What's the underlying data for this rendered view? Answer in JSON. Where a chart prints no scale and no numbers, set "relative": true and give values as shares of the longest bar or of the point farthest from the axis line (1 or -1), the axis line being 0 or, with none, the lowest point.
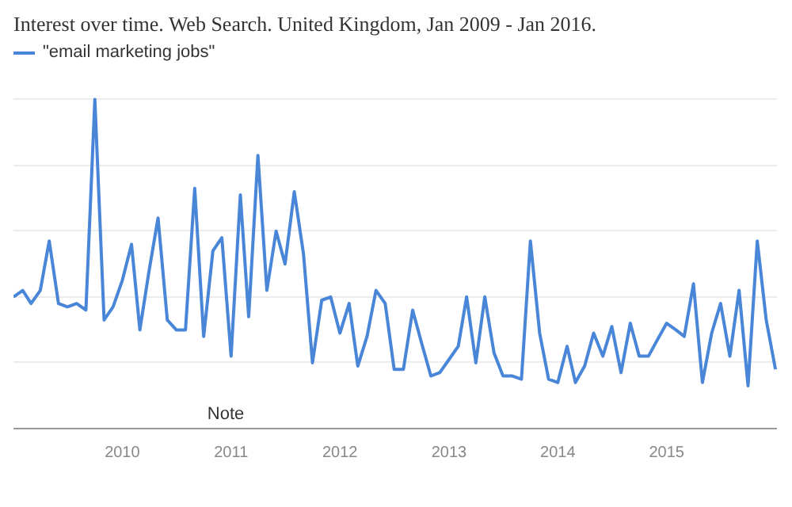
{
  "chart_data": {
    "type": "line",
    "title": "Interest over time. Web Search. United Kingdom, Jan 2009 - Jan 2016.",
    "relative": true,
    "x": [
      "2009-01",
      "2009-02",
      "2009-03",
      "2009-04",
      "2009-05",
      "2009-06",
      "2009-07",
      "2009-08",
      "2009-09",
      "2009-10",
      "2009-11",
      "2009-12",
      "2010-01",
      "2010-02",
      "2010-03",
      "2010-04",
      "2010-05",
      "2010-06",
      "2010-07",
      "2010-08",
      "2010-09",
      "2010-10",
      "2010-11",
      "2010-12",
      "2011-01",
      "2011-02",
      "2011-03",
      "2011-04",
      "2011-05",
      "2011-06",
      "2011-07",
      "2011-08",
      "2011-09",
      "2011-10",
      "2011-11",
      "2011-12",
      "2012-01",
      "2012-02",
      "2012-03",
      "2012-04",
      "2012-05",
      "2012-06",
      "2012-07",
      "2012-08",
      "2012-09",
      "2012-10",
      "2012-11",
      "2012-12",
      "2013-01",
      "2013-02",
      "2013-03",
      "2013-04",
      "2013-05",
      "2013-06",
      "2013-07",
      "2013-08",
      "2013-09",
      "2013-10",
      "2013-11",
      "2013-12",
      "2014-01",
      "2014-02",
      "2014-03",
      "2014-04",
      "2014-05",
      "2014-06",
      "2014-07",
      "2014-08",
      "2014-09",
      "2014-10",
      "2014-11",
      "2014-12",
      "2015-01",
      "2015-02",
      "2015-03",
      "2015-04",
      "2015-05",
      "2015-06",
      "2015-07",
      "2015-08",
      "2015-09",
      "2015-10",
      "2015-11",
      "2015-12",
      "2016-01"
    ],
    "series": [
      {
        "name": "\"email marketing jobs\"",
        "color": "#4a86d8",
        "values": [
          0.4,
          0.42,
          0.38,
          0.42,
          0.57,
          0.38,
          0.37,
          0.38,
          0.36,
          1.0,
          0.33,
          0.37,
          0.45,
          0.56,
          0.3,
          0.48,
          0.64,
          0.33,
          0.3,
          0.3,
          0.73,
          0.28,
          0.54,
          0.58,
          0.22,
          0.71,
          0.34,
          0.83,
          0.42,
          0.6,
          0.5,
          0.72,
          0.53,
          0.2,
          0.39,
          0.4,
          0.29,
          0.38,
          0.19,
          0.28,
          0.42,
          0.38,
          0.18,
          0.18,
          0.36,
          0.26,
          0.16,
          0.17,
          0.21,
          0.25,
          0.4,
          0.2,
          0.4,
          0.23,
          0.16,
          0.16,
          0.15,
          0.57,
          0.29,
          0.15,
          0.14,
          0.25,
          0.14,
          0.19,
          0.29,
          0.22,
          0.31,
          0.17,
          0.32,
          0.22,
          0.22,
          0.27,
          0.32,
          0.3,
          0.28,
          0.44,
          0.14,
          0.29,
          0.38,
          0.22,
          0.42,
          0.13,
          0.57,
          0.33,
          0.18
        ]
      }
    ],
    "xlim": [
      "2009-01",
      "2016-01"
    ],
    "xticks": [
      "2010",
      "2011",
      "2012",
      "2013",
      "2014",
      "2015"
    ],
    "annotations": [
      "Note"
    ],
    "grid": "y",
    "legend": "top left",
    "marker": "none",
    "line_style": "solid"
  }
}
